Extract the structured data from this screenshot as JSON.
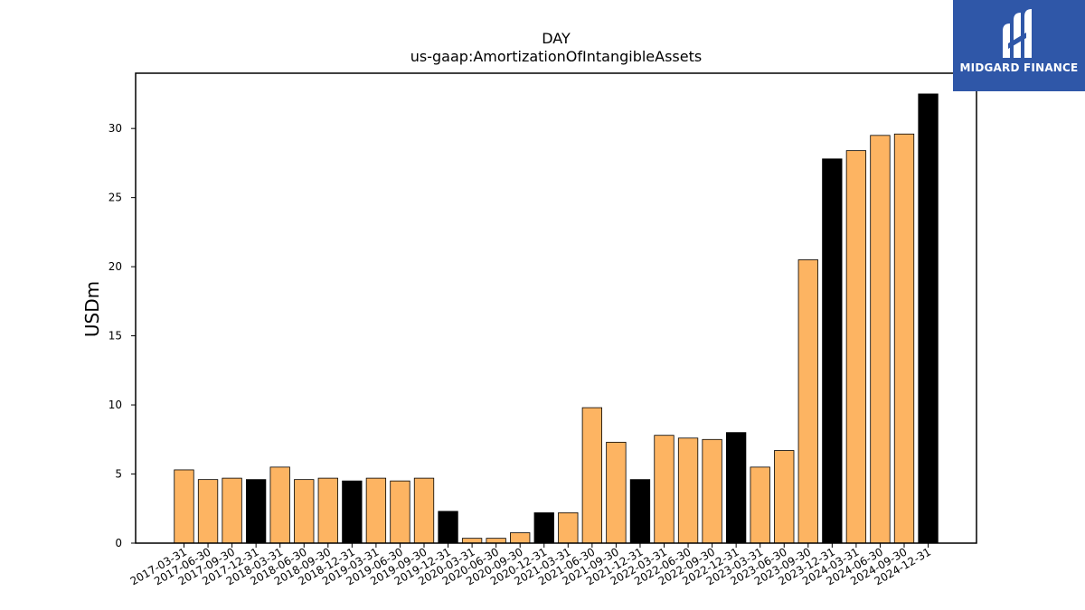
{
  "brand": {
    "name": "MIDGARD FINANCE",
    "color": "#2f57a8"
  },
  "chart_data": {
    "type": "bar",
    "title": "DAY",
    "subtitle": "us-gaap:AmortizationOfIntangibleAssets",
    "xlabel": "",
    "ylabel": "USDm",
    "ylim": [
      0,
      34
    ],
    "yticks": [
      0,
      5,
      10,
      15,
      20,
      25,
      30
    ],
    "grid": false,
    "legend": "none",
    "colors": {
      "default": "#fdb462",
      "q4": "#000000",
      "edge": "#000000"
    },
    "categories": [
      "2017-03-31",
      "2017-06-30",
      "2017-09-30",
      "2017-12-31",
      "2018-03-31",
      "2018-06-30",
      "2018-09-30",
      "2018-12-31",
      "2019-03-31",
      "2019-06-30",
      "2019-09-30",
      "2019-12-31",
      "2020-03-31",
      "2020-06-30",
      "2020-09-30",
      "2020-12-31",
      "2021-03-31",
      "2021-06-30",
      "2021-09-30",
      "2021-12-31",
      "2022-03-31",
      "2022-06-30",
      "2022-09-30",
      "2022-12-31",
      "2023-03-31",
      "2023-06-30",
      "2023-09-30",
      "2023-12-31",
      "2024-03-31",
      "2024-06-30",
      "2024-09-30",
      "2024-12-31"
    ],
    "values": [
      5.3,
      4.6,
      4.7,
      4.6,
      5.5,
      4.6,
      4.7,
      4.5,
      4.7,
      4.5,
      4.7,
      2.3,
      0.35,
      0.35,
      0.75,
      2.2,
      2.2,
      9.8,
      7.3,
      4.6,
      7.8,
      7.6,
      7.5,
      8.0,
      5.5,
      6.7,
      20.5,
      27.8,
      28.4,
      29.5,
      29.6,
      32.5
    ]
  }
}
